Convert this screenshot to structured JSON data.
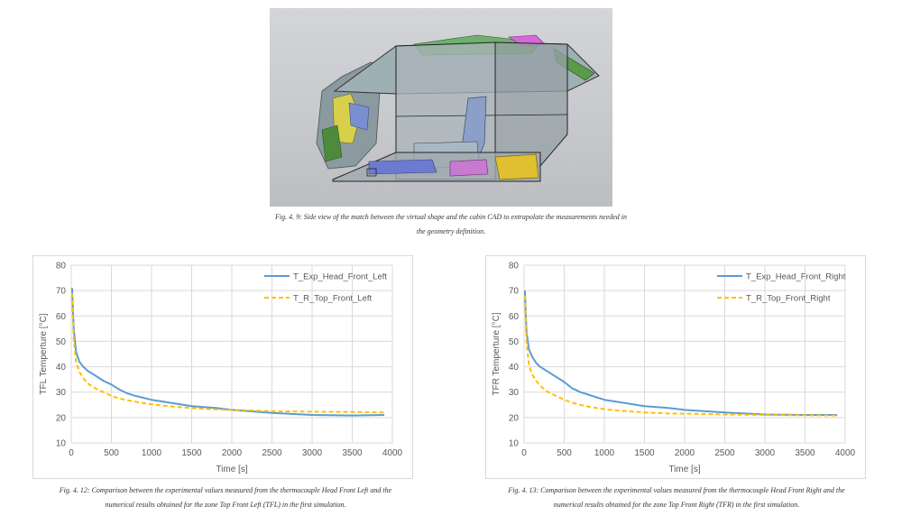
{
  "figure_top": {
    "caption_line1": "Fig. 4. 9: Side view of the match between the virtual shape and the cabin CAD to extrapolate the measurements needed in",
    "caption_line2": "the geometry definition."
  },
  "captions": {
    "left_line1": "Fig. 4. 12: Comparison between the experimental values measured from the thermocouple Head Front Left and the",
    "left_line2": "numerical results obtained for the zone Top Front Left (TFL) in the first simulation.",
    "right_line1": "Fig. 4. 13: Comparison between the experimental values measured from the thermocouple Head Front Right and the",
    "right_line2": "numerical results obtained for the zone Top Front Right (TFR) in the first simulation."
  },
  "colors": {
    "experimental": "#5b9bd5",
    "numerical": "#ffc000",
    "grid": "#d9d9d9",
    "text": "#595959"
  },
  "chart_data": [
    {
      "type": "line",
      "title": "",
      "xlabel": "Time [s]",
      "ylabel": "TFL Temperture [°C]",
      "xlim": [
        0,
        4000
      ],
      "ylim": [
        10,
        80
      ],
      "xticks": [
        0,
        500,
        1000,
        1500,
        2000,
        2500,
        3000,
        3500,
        4000
      ],
      "yticks": [
        10,
        20,
        30,
        40,
        50,
        60,
        70,
        80
      ],
      "grid": true,
      "legend": "top-right",
      "series": [
        {
          "name": "T_Exp_Head_Front_Left",
          "style": "solid",
          "x": [
            10,
            30,
            60,
            100,
            150,
            200,
            300,
            400,
            500,
            600,
            700,
            800,
            1000,
            1200,
            1500,
            1800,
            2000,
            2500,
            3000,
            3500,
            3900
          ],
          "y": [
            71,
            55,
            46,
            42,
            40,
            38.5,
            36.5,
            34.5,
            33,
            31,
            29.5,
            28.5,
            27,
            26,
            24.5,
            23.8,
            23,
            21.8,
            21,
            20.8,
            21
          ]
        },
        {
          "name": "T_R_Top_Front_Left",
          "style": "dashed",
          "x": [
            10,
            30,
            60,
            100,
            150,
            200,
            300,
            400,
            500,
            600,
            700,
            800,
            1000,
            1200,
            1500,
            1800,
            2000,
            2500,
            3000,
            3500,
            3900
          ],
          "y": [
            69,
            51,
            42,
            38,
            35.5,
            33.5,
            31.5,
            30,
            28.5,
            27.5,
            26.8,
            26.2,
            25.2,
            24.5,
            23.7,
            23.2,
            23,
            22.5,
            22.3,
            22.2,
            22
          ]
        }
      ]
    },
    {
      "type": "line",
      "title": "",
      "xlabel": "Time [s]",
      "ylabel": "TFR Temperture [°C]",
      "xlim": [
        0,
        4000
      ],
      "ylim": [
        10,
        80
      ],
      "xticks": [
        0,
        500,
        1000,
        1500,
        2000,
        2500,
        3000,
        3500,
        4000
      ],
      "yticks": [
        10,
        20,
        30,
        40,
        50,
        60,
        70,
        80
      ],
      "grid": true,
      "legend": "top-right",
      "series": [
        {
          "name": "T_Exp_Head_Front_Right",
          "style": "solid",
          "x": [
            10,
            30,
            60,
            100,
            150,
            200,
            300,
            400,
            500,
            600,
            700,
            800,
            1000,
            1200,
            1500,
            1800,
            2000,
            2500,
            3000,
            3500,
            3900
          ],
          "y": [
            70,
            54,
            47,
            44,
            41.5,
            40,
            38,
            36,
            34,
            31.5,
            30,
            29,
            27,
            26,
            24.5,
            23.8,
            23,
            22,
            21.2,
            21,
            21
          ]
        },
        {
          "name": "T_R_Top_Front_Right",
          "style": "dashed",
          "x": [
            10,
            30,
            60,
            100,
            150,
            200,
            300,
            400,
            500,
            600,
            700,
            800,
            1000,
            1200,
            1500,
            1800,
            2000,
            2500,
            3000,
            3500,
            3900
          ],
          "y": [
            68,
            50,
            41,
            37,
            34.5,
            32.5,
            30,
            28.5,
            27,
            25.8,
            25,
            24.3,
            23.3,
            22.7,
            22,
            21.6,
            21.5,
            21.2,
            21,
            20.9,
            20.8
          ]
        }
      ]
    }
  ]
}
